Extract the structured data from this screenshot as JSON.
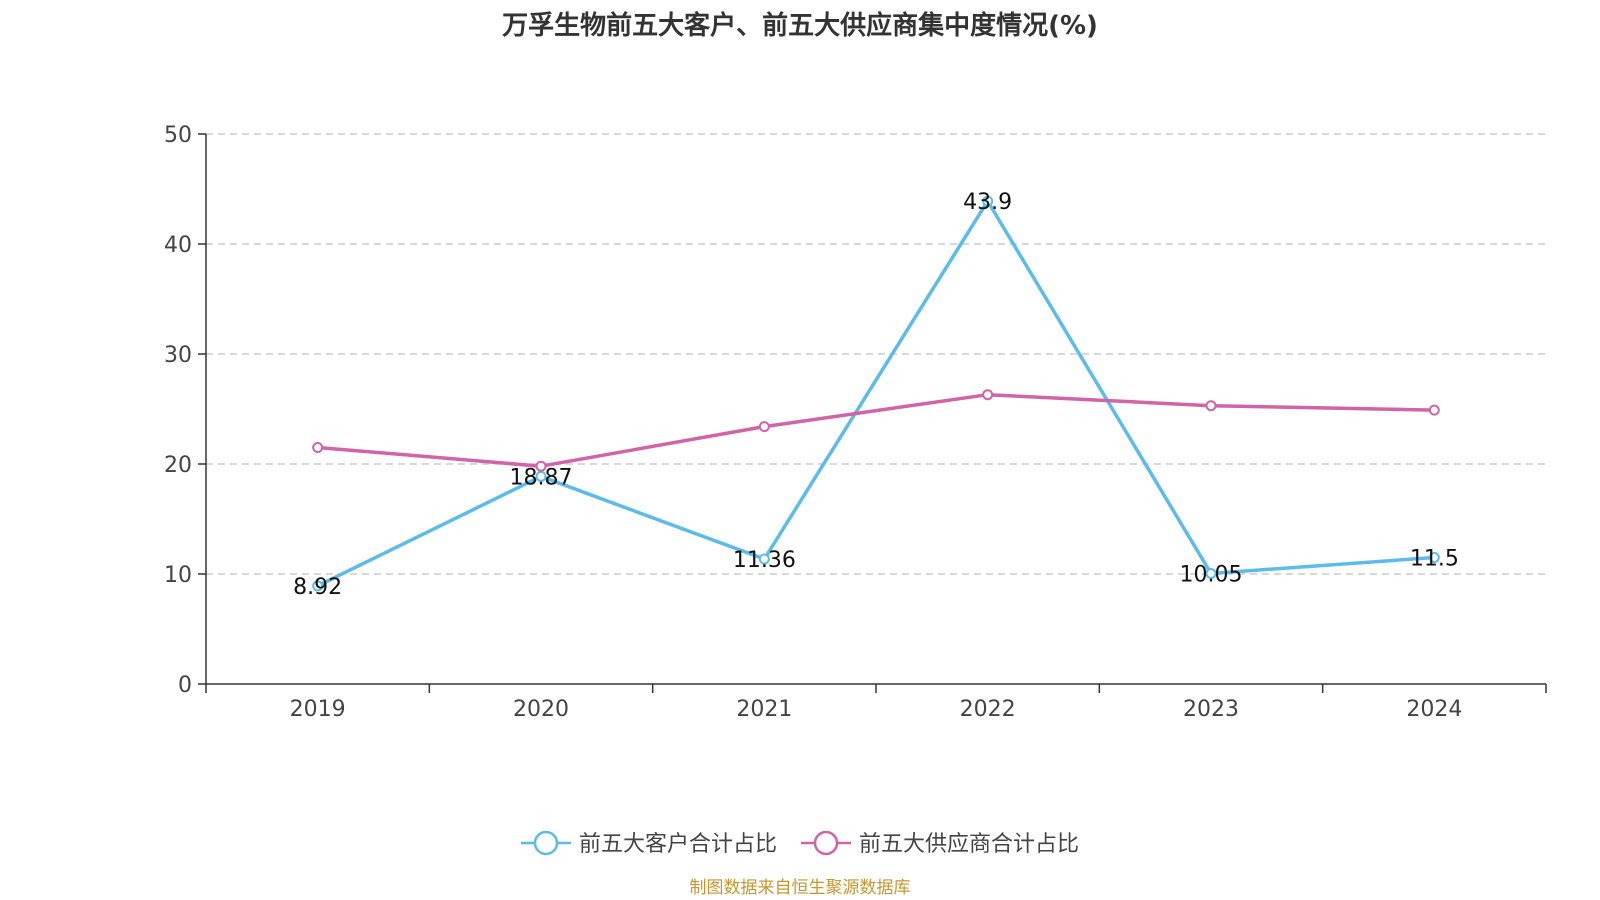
{
  "chart_data": {
    "type": "line",
    "title": "万孚生物前五大客户、前五大供应商集中度情况(%)",
    "categories": [
      "2019",
      "2020",
      "2021",
      "2022",
      "2023",
      "2024"
    ],
    "ylim": [
      0,
      50
    ],
    "yticks": [
      0,
      10,
      20,
      30,
      40,
      50
    ],
    "grid": true,
    "legend_position": "bottom-center",
    "series": [
      {
        "name": "前五大客户合计占比",
        "color": "#5bbcec",
        "values": [
          8.92,
          18.87,
          11.36,
          43.9,
          10.05,
          11.5
        ],
        "labels": [
          "8.92",
          "18.87",
          "11.36",
          "43.9",
          "10.05",
          "11.5"
        ],
        "show_labels": true
      },
      {
        "name": "前五大供应商合计占比",
        "color": "#d163a8",
        "values": [
          21.5,
          19.8,
          23.4,
          26.3,
          25.3,
          24.9
        ],
        "show_labels": false
      }
    ],
    "source": "制图数据来自恒生聚源数据库"
  }
}
